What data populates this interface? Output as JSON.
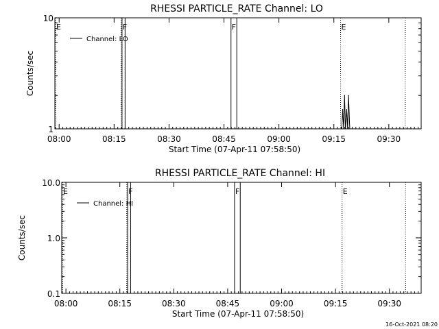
{
  "timestamp": "16-Oct-2021 08:20",
  "chart_data": [
    {
      "type": "line",
      "title": "RHESSI PARTICLE_RATE Channel: LO",
      "xlabel": "Start Time (07-Apr-11 07:58:50)",
      "ylabel": "Counts/sec",
      "yscale": "log",
      "ylim": [
        1,
        10
      ],
      "xlim": [
        "07:58:50",
        "09:38:50"
      ],
      "x_ticks": [
        "08:00",
        "08:15",
        "08:30",
        "08:45",
        "09:00",
        "09:15",
        "09:30"
      ],
      "y_ticks": [
        "1",
        "10"
      ],
      "legend": {
        "position": "top-left",
        "entries": [
          "Channel: LO"
        ]
      },
      "series": [
        {
          "name": "Channel: LO",
          "color": "#000000",
          "points": [
            {
              "x": "09:17:10",
              "y": 1
            },
            {
              "x": "09:17:25",
              "y": 1.5
            },
            {
              "x": "09:17:40",
              "y": 1
            },
            {
              "x": "09:17:55",
              "y": 2
            },
            {
              "x": "09:18:10",
              "y": 1
            },
            {
              "x": "09:18:30",
              "y": 1.5
            },
            {
              "x": "09:18:45",
              "y": 1
            },
            {
              "x": "09:19:00",
              "y": 2
            },
            {
              "x": "09:19:20",
              "y": 1
            }
          ]
        }
      ],
      "markers": [
        {
          "x": "07:58:50",
          "label": "E",
          "style": "dotted"
        },
        {
          "x": "08:16:55",
          "label": "",
          "style": "dotted"
        },
        {
          "x": "08:17:10",
          "label": "F",
          "style": "solid"
        },
        {
          "x": "08:18:00",
          "label": "",
          "style": "solid"
        },
        {
          "x": "08:46:55",
          "label": "F",
          "style": "solid"
        },
        {
          "x": "08:48:30",
          "label": "",
          "style": "solid"
        },
        {
          "x": "09:16:50",
          "label": "E",
          "style": "dotted"
        },
        {
          "x": "09:34:30",
          "label": "",
          "style": "dotted"
        }
      ]
    },
    {
      "type": "line",
      "title": "RHESSI PARTICLE_RATE Channel: HI",
      "xlabel": "Start Time (07-Apr-11 07:58:50)",
      "ylabel": "Counts/sec",
      "yscale": "log",
      "ylim": [
        0.1,
        10
      ],
      "xlim": [
        "07:58:50",
        "09:38:50"
      ],
      "x_ticks": [
        "08:00",
        "08:15",
        "08:30",
        "08:45",
        "09:00",
        "09:15",
        "09:30"
      ],
      "y_ticks": [
        "0.1",
        "1.0",
        "10.0"
      ],
      "legend": {
        "position": "top-left",
        "entries": [
          "Channel: HI"
        ]
      },
      "series": [
        {
          "name": "Channel: HI",
          "color": "#000000",
          "points": []
        }
      ],
      "markers": [
        {
          "x": "07:58:50",
          "label": "E",
          "style": "dotted"
        },
        {
          "x": "08:16:55",
          "label": "",
          "style": "dotted"
        },
        {
          "x": "08:17:10",
          "label": "F",
          "style": "solid"
        },
        {
          "x": "08:18:00",
          "label": "",
          "style": "solid"
        },
        {
          "x": "08:46:55",
          "label": "F",
          "style": "solid"
        },
        {
          "x": "08:48:30",
          "label": "",
          "style": "solid"
        },
        {
          "x": "09:16:50",
          "label": "E",
          "style": "dotted"
        },
        {
          "x": "09:34:30",
          "label": "",
          "style": "dotted"
        }
      ]
    }
  ]
}
